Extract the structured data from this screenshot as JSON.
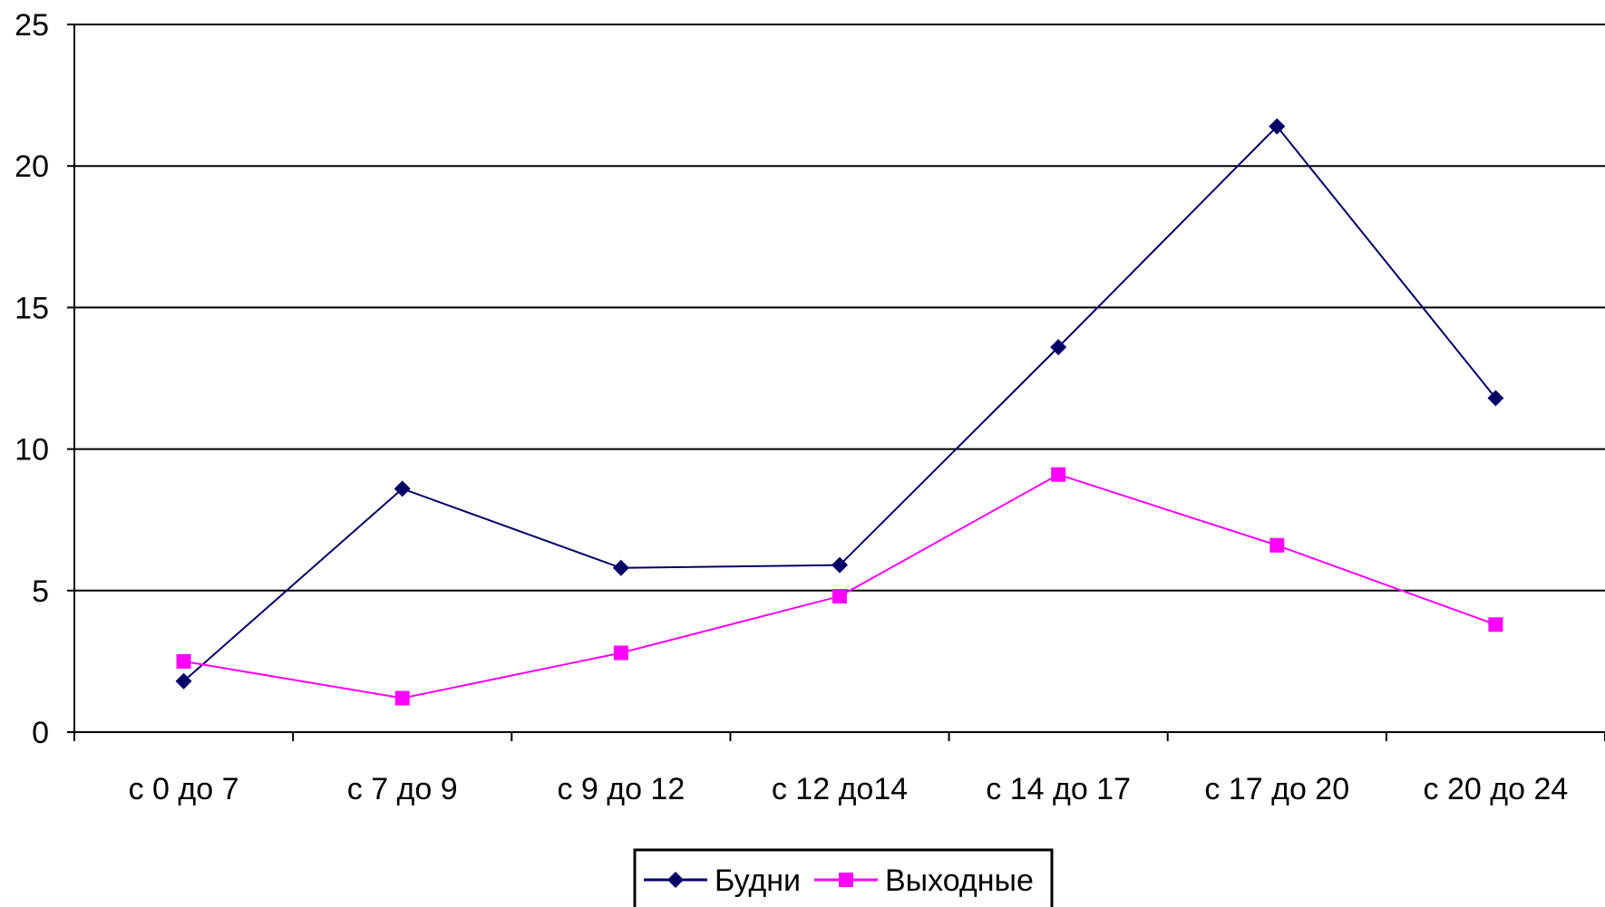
{
  "chart_data": {
    "type": "line",
    "title": "",
    "xlabel": "",
    "ylabel": "",
    "categories": [
      "с 0 до 7",
      "с 7 до 9",
      "с 9 до 12",
      "с 12 до14",
      "с 14 до 17",
      "с 17 до 20",
      "с 20 до 24"
    ],
    "ylim": [
      0,
      25
    ],
    "yticks": [
      "0",
      "5",
      "10",
      "15",
      "20",
      "25"
    ],
    "grid": true,
    "legend_position": "bottom",
    "series": [
      {
        "name": "Будни",
        "color": "#000066",
        "marker": "diamond",
        "values": [
          1.8,
          8.6,
          5.8,
          5.9,
          13.6,
          21.4,
          11.8
        ]
      },
      {
        "name": "Выходные",
        "color": "#ff00ff",
        "marker": "square",
        "values": [
          2.5,
          1.2,
          2.8,
          4.8,
          9.1,
          6.6,
          3.8
        ]
      }
    ]
  }
}
